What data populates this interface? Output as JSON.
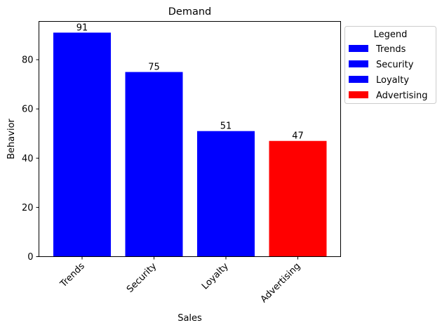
{
  "chart_data": {
    "type": "bar",
    "title": "Demand",
    "xlabel": "Sales",
    "ylabel": "Behavior",
    "categories": [
      "Trends",
      "Security",
      "Loyalty",
      "Advertising"
    ],
    "values": [
      91,
      75,
      51,
      47
    ],
    "data_labels": [
      "91",
      "75",
      "51",
      "47"
    ],
    "bar_colors": [
      "#0000ff",
      "#0000ff",
      "#0000ff",
      "#ff0000"
    ],
    "ylim": [
      0,
      95.55
    ],
    "yticks": [
      0,
      20,
      40,
      60,
      80
    ],
    "ytick_labels": [
      "0",
      "20",
      "40",
      "60",
      "80"
    ],
    "grid": false,
    "legend": {
      "title": "Legend",
      "placement": "outside upper right",
      "entries": [
        {
          "label": "Trends",
          "color": "#0000ff"
        },
        {
          "label": "Security",
          "color": "#0000ff"
        },
        {
          "label": "Loyalty",
          "color": "#0000ff"
        },
        {
          "label": "Advertising",
          "color": "#ff0000"
        }
      ]
    }
  }
}
